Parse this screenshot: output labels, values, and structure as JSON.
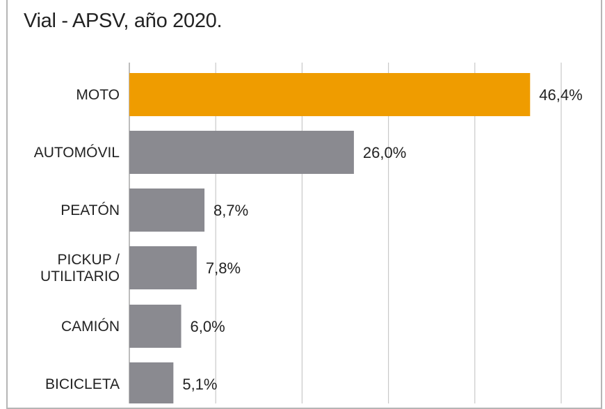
{
  "title_line": "Vial - APSV, año 2020.",
  "colors": {
    "highlight": "#ef9c00",
    "bar": "#8a8a90",
    "grid": "#c8c8c8",
    "axis": "#bdbdbd"
  },
  "chart_data": {
    "type": "bar",
    "orientation": "horizontal",
    "title": "Vial - APSV, año 2020.",
    "categories": [
      [
        "MOTO"
      ],
      [
        "AUTOMÓVIL"
      ],
      [
        "PEATÓN"
      ],
      [
        "PICKUP /",
        "UTILITARIO"
      ],
      [
        "CAMIÓN"
      ],
      [
        "BICICLETA"
      ]
    ],
    "values": [
      46.4,
      26.0,
      8.7,
      7.8,
      6.0,
      5.1
    ],
    "value_labels": [
      "46,4%",
      "26,0%",
      "8,7%",
      "7,8%",
      "6,0%",
      "5,1%"
    ],
    "highlight_index": 0,
    "xlim": [
      0,
      50
    ],
    "gridlines": [
      0,
      10,
      20,
      30,
      40,
      50
    ],
    "xlabel": "",
    "ylabel": ""
  }
}
